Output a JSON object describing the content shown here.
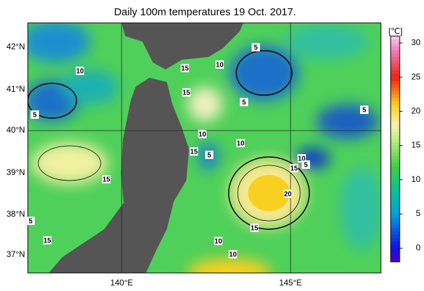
{
  "title": "Daily 100m temperatures 19 Oct. 2017.",
  "lat_labels": [
    "42°N",
    "41°N",
    "40°N",
    "39°N",
    "38°N",
    "37°N"
  ],
  "lon_labels": [
    "140°E",
    "145°E"
  ],
  "colorbar": {
    "unit": "[℃]",
    "lim": [
      -2,
      31
    ],
    "ticks": [
      0,
      5,
      10,
      15,
      20,
      25,
      30
    ]
  },
  "contour_labels": [
    5,
    10,
    10,
    15,
    15,
    5,
    5,
    5,
    10,
    10,
    15,
    5,
    10,
    15,
    5,
    15,
    20,
    15,
    5,
    15,
    10,
    10
  ]
}
